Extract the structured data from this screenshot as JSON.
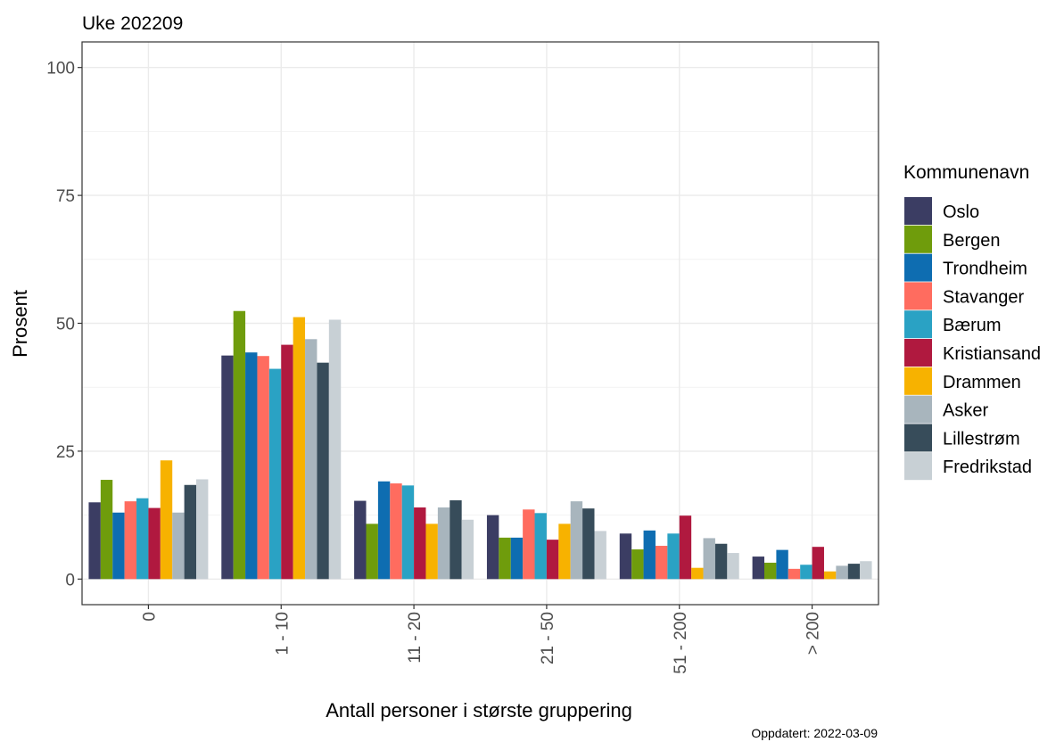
{
  "chart_data": {
    "type": "bar",
    "title": "Uke 202209",
    "xlabel": "Antall personer i største gruppering",
    "ylabel": "Prosent",
    "ylim": [
      -5,
      105
    ],
    "yticks": [
      0,
      25,
      50,
      75,
      100
    ],
    "grid": true,
    "legend_title": "Kommunenavn",
    "legend_position": "right",
    "caption": "Oppdatert: 2022-03-09",
    "categories": [
      "0",
      "1 - 10",
      "11 - 20",
      "21 - 50",
      "51 - 200",
      "> 200"
    ],
    "series": [
      {
        "name": "Oslo",
        "color": "#3b3d63",
        "values": [
          15.0,
          43.7,
          15.3,
          12.5,
          8.9,
          4.4
        ]
      },
      {
        "name": "Bergen",
        "color": "#6f9c0c",
        "values": [
          19.4,
          52.4,
          10.8,
          8.1,
          5.8,
          3.2
        ]
      },
      {
        "name": "Trondheim",
        "color": "#0e6db1",
        "values": [
          13.0,
          44.3,
          19.1,
          8.1,
          9.5,
          5.7
        ]
      },
      {
        "name": "Stavanger",
        "color": "#ff6c5f",
        "values": [
          15.2,
          43.6,
          18.7,
          13.6,
          6.5,
          2.0
        ]
      },
      {
        "name": "Bærum",
        "color": "#2aa2c4",
        "values": [
          15.8,
          41.1,
          18.3,
          12.9,
          8.9,
          2.8
        ]
      },
      {
        "name": "Kristiansand",
        "color": "#b0193f",
        "values": [
          13.9,
          45.8,
          14.0,
          7.7,
          12.4,
          6.3
        ]
      },
      {
        "name": "Drammen",
        "color": "#f7b200",
        "values": [
          23.2,
          51.2,
          10.8,
          10.8,
          2.2,
          1.5
        ]
      },
      {
        "name": "Asker",
        "color": "#a8b5bd",
        "values": [
          13.0,
          46.9,
          14.0,
          15.2,
          8.0,
          2.6
        ]
      },
      {
        "name": "Lillestrøm",
        "color": "#374c5a",
        "values": [
          18.4,
          42.3,
          15.4,
          13.8,
          6.9,
          3.0
        ]
      },
      {
        "name": "Fredrikstad",
        "color": "#c8d0d5",
        "values": [
          19.5,
          50.7,
          11.6,
          9.4,
          5.1,
          3.5
        ]
      }
    ]
  }
}
